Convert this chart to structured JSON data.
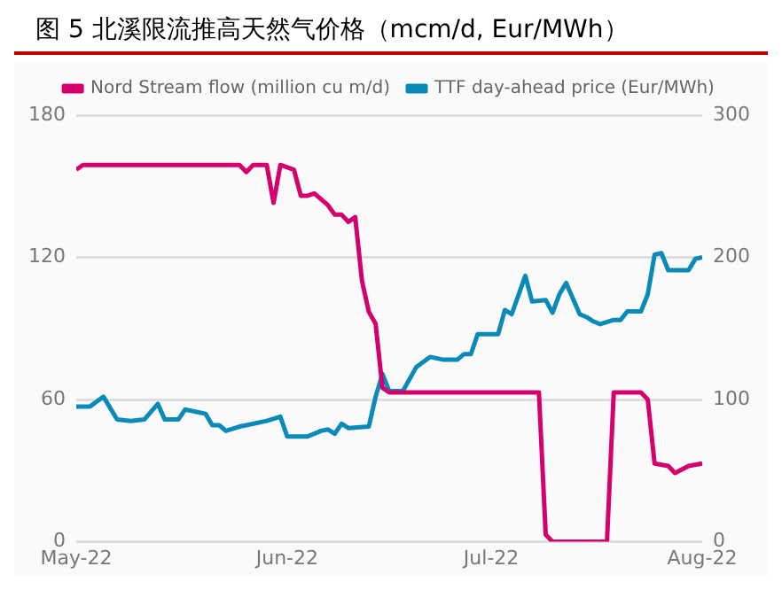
{
  "chart_data": {
    "type": "line",
    "title": "图 5 北溪限流推高天然气价格（mcm/d, Eur/MWh）",
    "xlim": [
      "2022-05-01",
      "2022-08-01"
    ],
    "xticks": [
      {
        "value": "2022-05-01",
        "label": "May-22"
      },
      {
        "value": "2022-06-01",
        "label": "Jun-22"
      },
      {
        "value": "2022-07-01",
        "label": "Jul-22"
      },
      {
        "value": "2022-08-01",
        "label": "Aug-22"
      }
    ],
    "ylim": [
      0,
      180
    ],
    "yticks": [
      0,
      60,
      120,
      180
    ],
    "y2lim": [
      0,
      300
    ],
    "y2ticks": [
      0,
      100,
      200,
      300
    ],
    "grid": "y",
    "legend": "top",
    "marker": "none",
    "line_style": "solid",
    "series": [
      {
        "name": "Nord Stream flow (million cu m/d)",
        "color": "#d4006e",
        "x": [
          "2022-05-01",
          "2022-05-02",
          "2022-05-25",
          "2022-05-26",
          "2022-05-27",
          "2022-05-29",
          "2022-05-30",
          "2022-05-31",
          "2022-06-02",
          "2022-06-03",
          "2022-06-04",
          "2022-06-05",
          "2022-06-07",
          "2022-06-08",
          "2022-06-09",
          "2022-06-10",
          "2022-06-11",
          "2022-06-12",
          "2022-06-13",
          "2022-06-14",
          "2022-06-15",
          "2022-06-16",
          "2022-07-08",
          "2022-07-09",
          "2022-07-10",
          "2022-07-18",
          "2022-07-19",
          "2022-07-23",
          "2022-07-24",
          "2022-07-25",
          "2022-07-27",
          "2022-07-28",
          "2022-07-30",
          "2022-08-01"
        ],
        "values": [
          157,
          159,
          159,
          156,
          159,
          159,
          143,
          159,
          157,
          146,
          146,
          147,
          142,
          138,
          138,
          135,
          137,
          110,
          97,
          92,
          65,
          63,
          63,
          3,
          0,
          0,
          63,
          63,
          60,
          33,
          32,
          29,
          32,
          33
        ]
      },
      {
        "name": "TTF day-ahead price (Eur/MWh)",
        "color": "#0a8ab8",
        "axis": "y2",
        "x": [
          "2022-05-01",
          "2022-05-03",
          "2022-05-05",
          "2022-05-07",
          "2022-05-09",
          "2022-05-11",
          "2022-05-13",
          "2022-05-14",
          "2022-05-16",
          "2022-05-17",
          "2022-05-20",
          "2022-05-21",
          "2022-05-22",
          "2022-05-23",
          "2022-05-25",
          "2022-05-26",
          "2022-05-29",
          "2022-05-31",
          "2022-06-01",
          "2022-06-04",
          "2022-06-06",
          "2022-06-07",
          "2022-06-08",
          "2022-06-09",
          "2022-06-10",
          "2022-06-13",
          "2022-06-14",
          "2022-06-15",
          "2022-06-16",
          "2022-06-18",
          "2022-06-20",
          "2022-06-22",
          "2022-06-24",
          "2022-06-26",
          "2022-06-27",
          "2022-06-28",
          "2022-06-29",
          "2022-07-02",
          "2022-07-03",
          "2022-07-04",
          "2022-07-06",
          "2022-07-07",
          "2022-07-09",
          "2022-07-10",
          "2022-07-11",
          "2022-07-12",
          "2022-07-14",
          "2022-07-15",
          "2022-07-16",
          "2022-07-17",
          "2022-07-19",
          "2022-07-20",
          "2022-07-21",
          "2022-07-23",
          "2022-07-24",
          "2022-07-25",
          "2022-07-26",
          "2022-07-27",
          "2022-07-30",
          "2022-07-31",
          "2022-08-01"
        ],
        "values": [
          95,
          95,
          102,
          86,
          85,
          86,
          97,
          86,
          86,
          93,
          90,
          82,
          82,
          78,
          81,
          82,
          85,
          88,
          74,
          74,
          78,
          79,
          76,
          83,
          80,
          81,
          102,
          118,
          106,
          106,
          123,
          130,
          128,
          128,
          132,
          132,
          146,
          146,
          163,
          160,
          187,
          169,
          170,
          161,
          174,
          182,
          160,
          158,
          155,
          153,
          156,
          156,
          162,
          162,
          174,
          202,
          203,
          191,
          191,
          199,
          200
        ]
      }
    ]
  }
}
